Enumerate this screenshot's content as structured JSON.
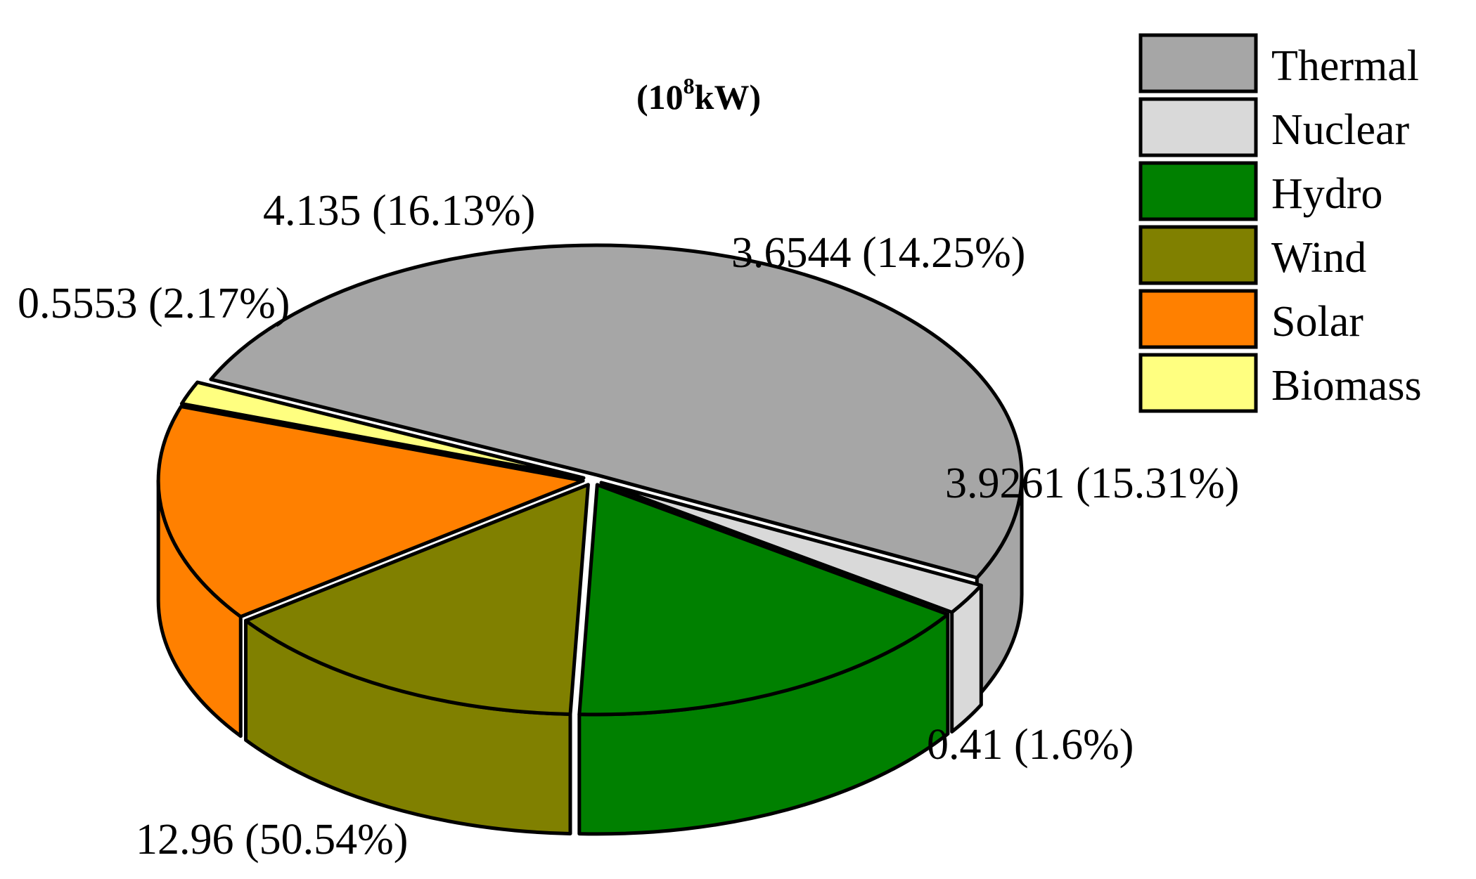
{
  "chart_data": {
    "type": "pie",
    "style": "3d",
    "unit_label": {
      "base": "(10",
      "sup": "8",
      "rest": "kW)"
    },
    "legend_position": "top-right",
    "slices": [
      {
        "name": "Thermal",
        "value": 12.96,
        "percent": 50.54,
        "label": "12.96 (50.54%)",
        "color": "#a6a6a6"
      },
      {
        "name": "Nuclear",
        "value": 0.5553,
        "percent": 2.17,
        "label": "0.5553 (2.17%)",
        "color": "#d9d9d9"
      },
      {
        "name": "Hydro",
        "value": 4.135,
        "percent": 16.13,
        "label": "4.135 (16.13%)",
        "color": "#008000"
      },
      {
        "name": "Wind",
        "value": 3.6544,
        "percent": 14.25,
        "label": "3.6544 (14.25%)",
        "color": "#808000"
      },
      {
        "name": "Solar",
        "value": 3.9261,
        "percent": 15.31,
        "label": "3.9261 (15.31%)",
        "color": "#ff8000"
      },
      {
        "name": "Biomass",
        "value": 0.41,
        "percent": 1.6,
        "label": "0.41 (1.6%)",
        "color": "#ffff80"
      }
    ]
  }
}
